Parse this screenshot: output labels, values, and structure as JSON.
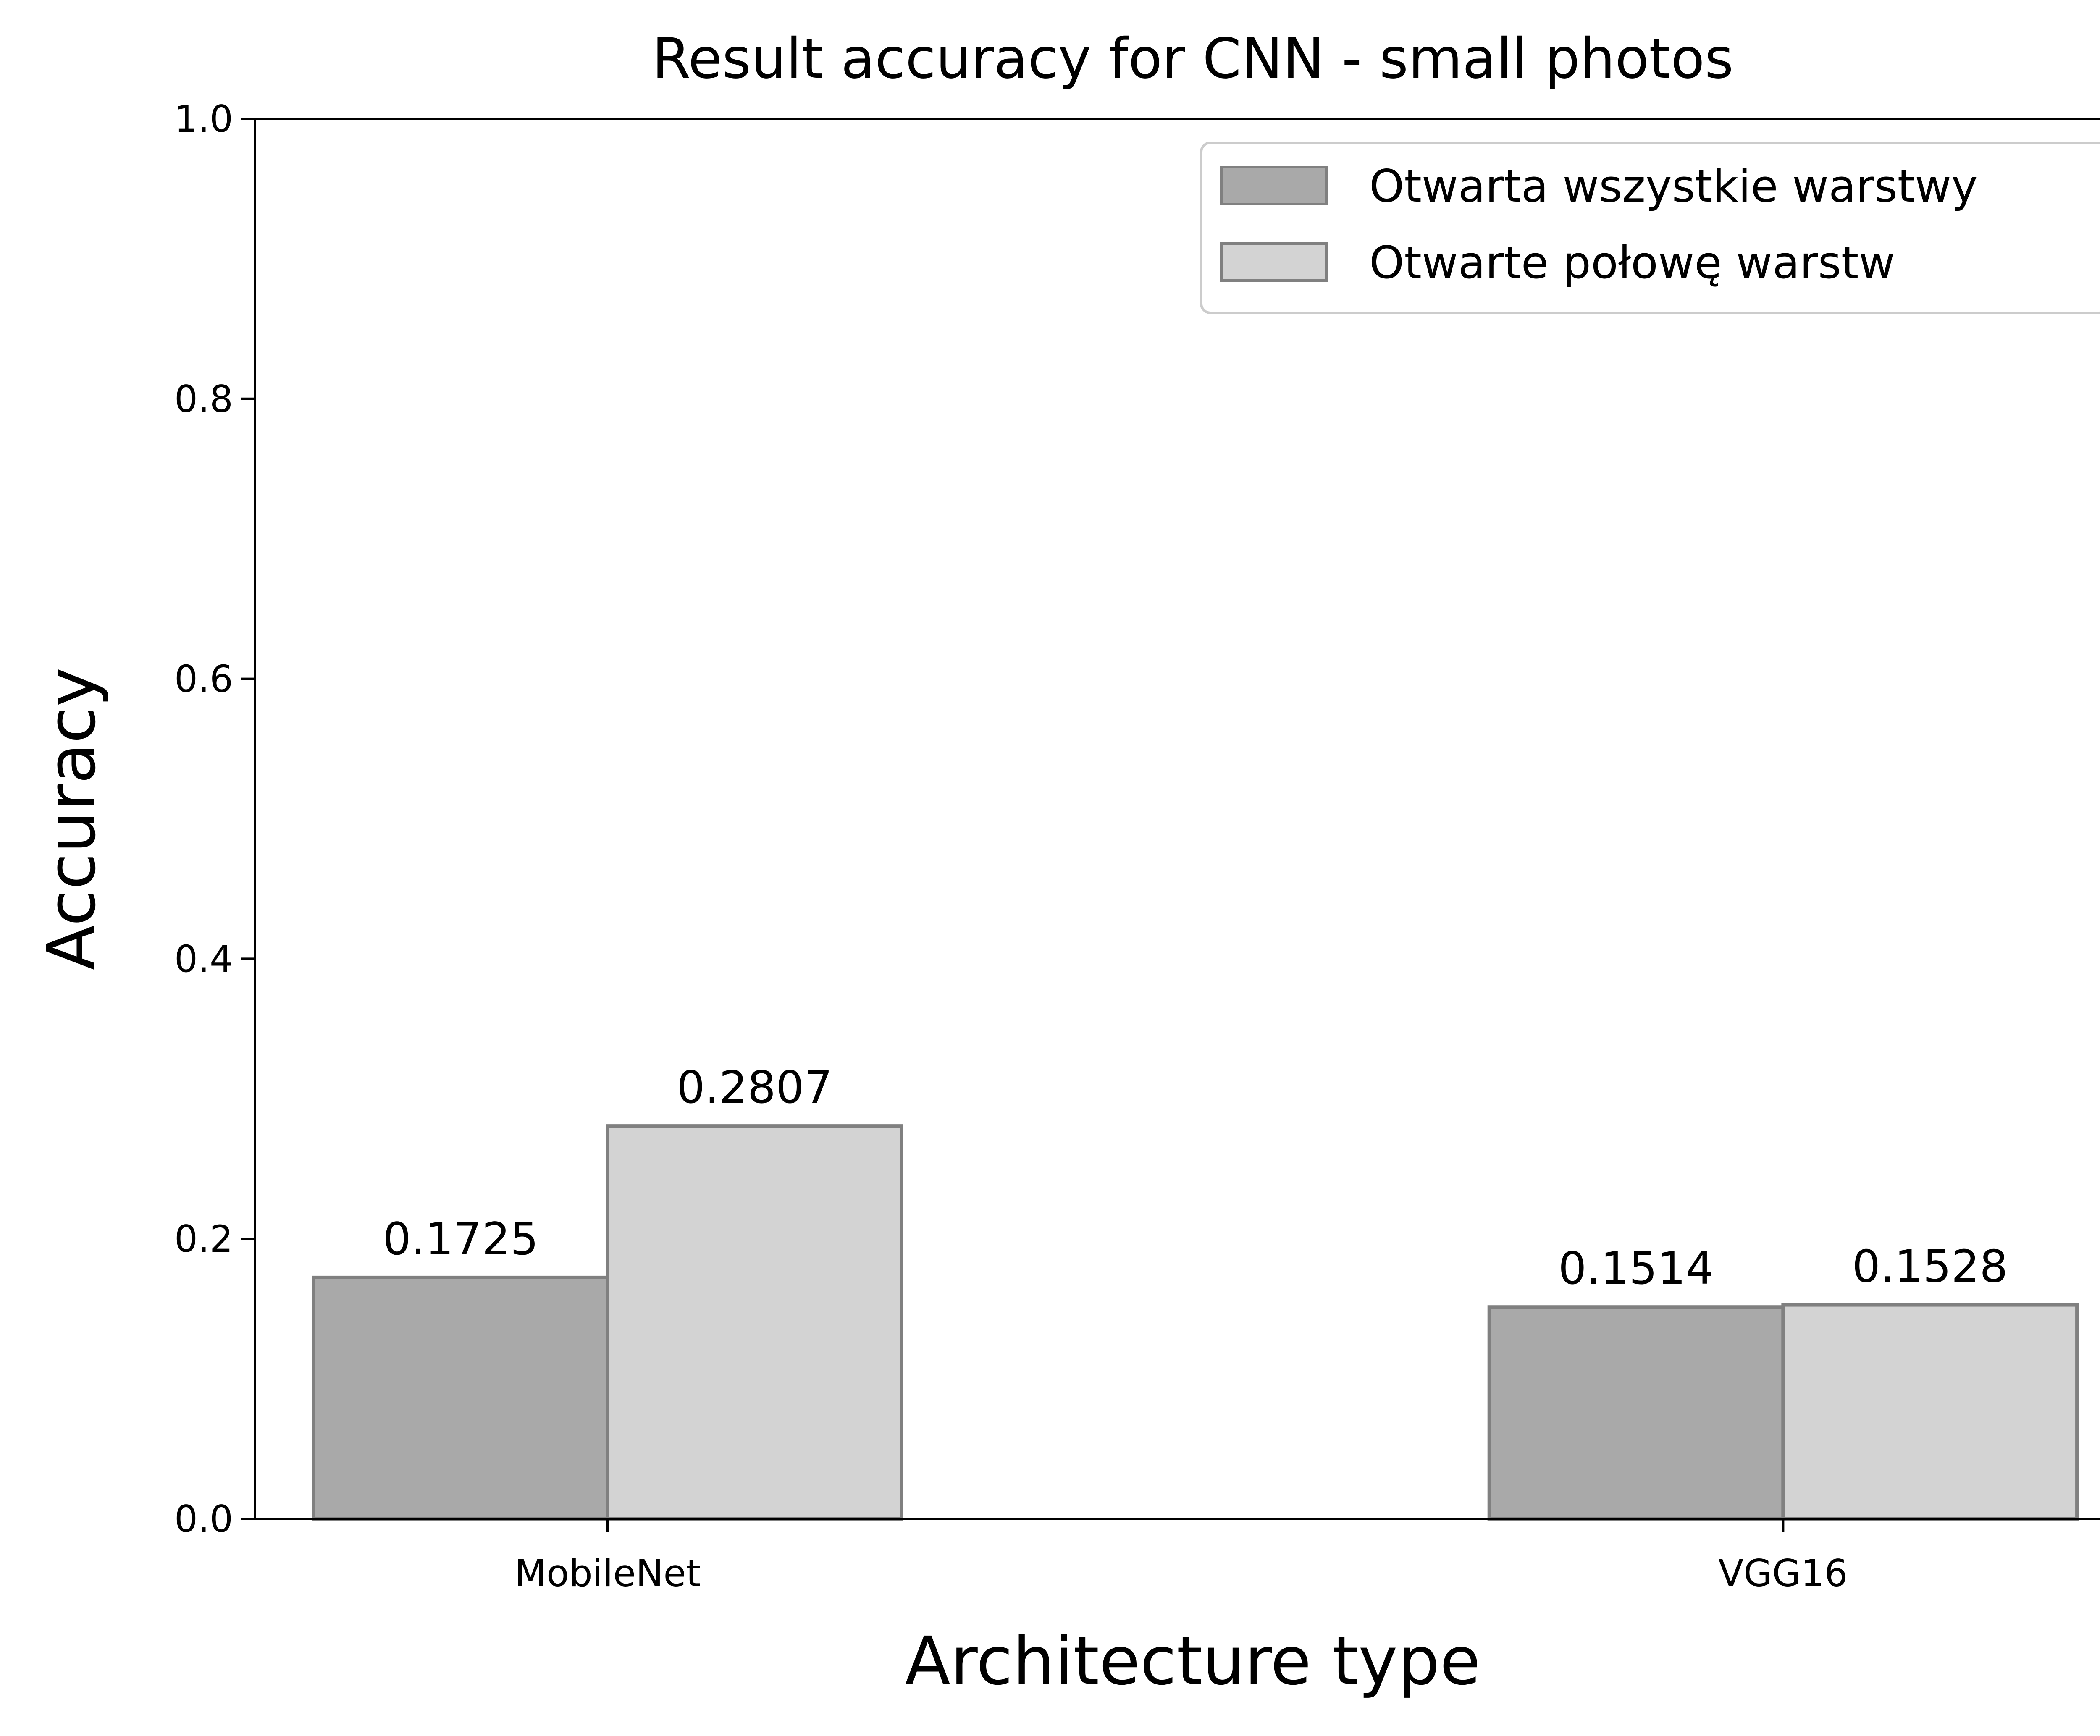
{
  "chart_data": {
    "type": "bar",
    "title": "Result accuracy for CNN - small photos",
    "xlabel": "Architecture type",
    "ylabel": "Accuracy",
    "categories": [
      "MobileNet",
      "VGG16"
    ],
    "series": [
      {
        "name": "Otwarta wszystkie warstwy",
        "values": [
          0.1725,
          0.1514
        ],
        "labels": [
          "0.1725",
          "0.1514"
        ],
        "color": "#a9a9a9"
      },
      {
        "name": "Otwarte połowę warstw",
        "values": [
          0.2807,
          0.1528
        ],
        "labels": [
          "0.2807",
          "0.1528"
        ],
        "color": "#d3d3d3"
      }
    ],
    "ylim": [
      0,
      1.0
    ],
    "yticks": [
      "0.0",
      "0.2",
      "0.4",
      "0.6",
      "0.8",
      "1.0"
    ],
    "grid": false,
    "legend_position": "top-right",
    "bar_edge_color": "#808080"
  }
}
